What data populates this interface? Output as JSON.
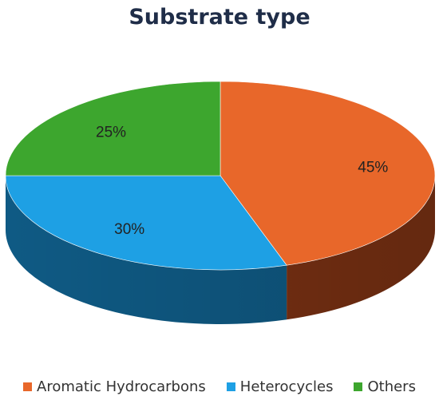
{
  "chart_data": {
    "type": "pie",
    "title": "Substrate type",
    "categories": [
      "Aromatic Hydrocarbons",
      "Heterocycles",
      "Others"
    ],
    "values": [
      45,
      30,
      25
    ],
    "value_labels": [
      "45%",
      "30%",
      "25%"
    ],
    "colors": [
      "#e8672a",
      "#1ea0e4",
      "#3da62e"
    ],
    "side_colors": [
      "#7a3113",
      "#0f5a84",
      "#1e5a17"
    ],
    "legend_position": "bottom",
    "three_d": true
  }
}
